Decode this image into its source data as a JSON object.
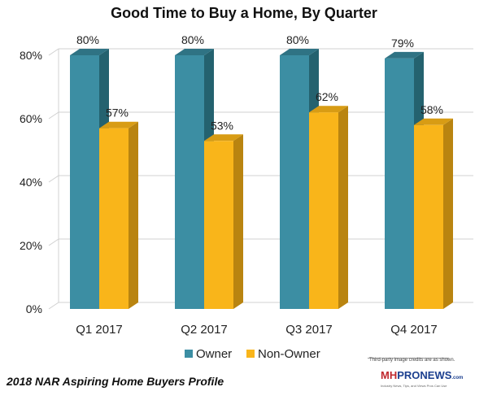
{
  "chart_data": {
    "type": "bar",
    "title": "Good Time to Buy a Home, By Quarter",
    "categories": [
      "Q1 2017",
      "Q2 2017",
      "Q3 2017",
      "Q4 2017"
    ],
    "series": [
      {
        "name": "Owner",
        "values": [
          80,
          80,
          80,
          79
        ],
        "labels": [
          "80%",
          "80%",
          "80%",
          "79%"
        ],
        "color": "#3c8ea3",
        "side_color": "#24626f",
        "top_color": "#2f7384"
      },
      {
        "name": "Non-Owner",
        "values": [
          57,
          53,
          62,
          58
        ],
        "labels": [
          "57%",
          "53%",
          "62%",
          "58%"
        ],
        "color": "#f9b51a",
        "side_color": "#b98410",
        "top_color": "#d89c14"
      }
    ],
    "ylim": [
      0,
      80
    ],
    "yticks": [
      0,
      20,
      40,
      60,
      80
    ],
    "ytick_labels": [
      "0%",
      "20%",
      "40%",
      "60%",
      "80%"
    ],
    "grid": true,
    "legend": "bottom",
    "three_d": true
  },
  "footer": {
    "source": "2018 NAR Aspiring Home Buyers Profile",
    "credit": "Third-party image credits are as shown.",
    "logo_mh": "MH",
    "logo_pro": "PRONEWS",
    "logo_com": ".com",
    "tagline": "Industry News, Tips, and Views Pros Can Use"
  }
}
